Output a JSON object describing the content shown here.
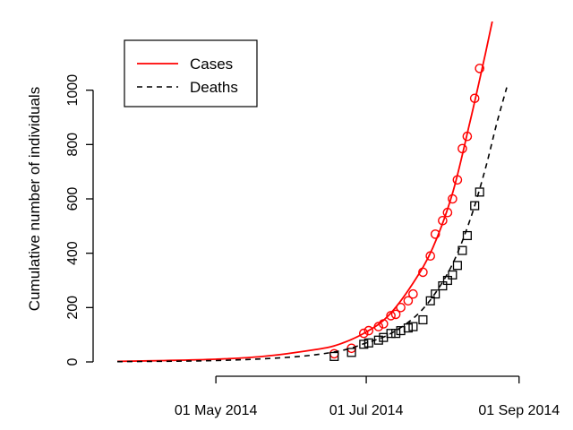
{
  "chart_data": {
    "type": "line",
    "title": "",
    "xlabel": "",
    "ylabel": "Cumulative number of individuals",
    "x_range": [
      "2014-03-22",
      "2014-08-27"
    ],
    "ylim": [
      0,
      1200
    ],
    "x_ticks": [
      {
        "date": "2014-05-01",
        "label": "01 May 2014"
      },
      {
        "date": "2014-07-01",
        "label": "01 Jul 2014"
      },
      {
        "date": "2014-09-01",
        "label": "01 Sep 2014"
      }
    ],
    "y_ticks": [
      0,
      200,
      400,
      600,
      800,
      1000
    ],
    "grid": false,
    "legend_position": "top-left",
    "series": [
      {
        "name": "Cases",
        "color": "#ff0000",
        "line_style": "solid",
        "marker": "circle",
        "fitted_curve": [
          [
            "2014-03-22",
            2
          ],
          [
            "2014-04-10",
            5
          ],
          [
            "2014-05-01",
            10
          ],
          [
            "2014-05-20",
            20
          ],
          [
            "2014-06-10",
            45
          ],
          [
            "2014-06-20",
            65
          ],
          [
            "2014-07-01",
            110
          ],
          [
            "2014-07-10",
            170
          ],
          [
            "2014-07-20",
            290
          ],
          [
            "2014-07-28",
            420
          ],
          [
            "2014-08-05",
            620
          ],
          [
            "2014-08-12",
            880
          ],
          [
            "2014-08-18",
            1120
          ],
          [
            "2014-08-22",
            1290
          ]
        ],
        "observed": [
          [
            "2014-06-18",
            30
          ],
          [
            "2014-06-25",
            50
          ],
          [
            "2014-06-30",
            105
          ],
          [
            "2014-07-02",
            115
          ],
          [
            "2014-07-06",
            130
          ],
          [
            "2014-07-08",
            140
          ],
          [
            "2014-07-11",
            170
          ],
          [
            "2014-07-13",
            175
          ],
          [
            "2014-07-15",
            200
          ],
          [
            "2014-07-18",
            225
          ],
          [
            "2014-07-20",
            250
          ],
          [
            "2014-07-24",
            330
          ],
          [
            "2014-07-27",
            390
          ],
          [
            "2014-07-29",
            470
          ],
          [
            "2014-08-01",
            520
          ],
          [
            "2014-08-03",
            550
          ],
          [
            "2014-08-05",
            600
          ],
          [
            "2014-08-07",
            670
          ],
          [
            "2014-08-09",
            785
          ],
          [
            "2014-08-11",
            830
          ],
          [
            "2014-08-14",
            970
          ],
          [
            "2014-08-16",
            1080
          ]
        ]
      },
      {
        "name": "Deaths",
        "color": "#000000",
        "line_style": "dashed",
        "marker": "square",
        "fitted_curve": [
          [
            "2014-03-22",
            1
          ],
          [
            "2014-05-01",
            5
          ],
          [
            "2014-06-01",
            18
          ],
          [
            "2014-06-20",
            40
          ],
          [
            "2014-07-01",
            70
          ],
          [
            "2014-07-10",
            100
          ],
          [
            "2014-07-20",
            160
          ],
          [
            "2014-07-28",
            240
          ],
          [
            "2014-08-05",
            360
          ],
          [
            "2014-08-12",
            520
          ],
          [
            "2014-08-18",
            700
          ],
          [
            "2014-08-23",
            880
          ],
          [
            "2014-08-27",
            1010
          ]
        ],
        "observed": [
          [
            "2014-06-18",
            20
          ],
          [
            "2014-06-25",
            35
          ],
          [
            "2014-06-30",
            65
          ],
          [
            "2014-07-02",
            70
          ],
          [
            "2014-07-06",
            80
          ],
          [
            "2014-07-08",
            90
          ],
          [
            "2014-07-11",
            105
          ],
          [
            "2014-07-13",
            105
          ],
          [
            "2014-07-15",
            115
          ],
          [
            "2014-07-18",
            125
          ],
          [
            "2014-07-20",
            130
          ],
          [
            "2014-07-24",
            155
          ],
          [
            "2014-07-27",
            225
          ],
          [
            "2014-07-29",
            250
          ],
          [
            "2014-08-01",
            280
          ],
          [
            "2014-08-03",
            300
          ],
          [
            "2014-08-05",
            320
          ],
          [
            "2014-08-07",
            355
          ],
          [
            "2014-08-09",
            410
          ],
          [
            "2014-08-11",
            465
          ],
          [
            "2014-08-14",
            575
          ],
          [
            "2014-08-16",
            625
          ]
        ]
      }
    ]
  }
}
